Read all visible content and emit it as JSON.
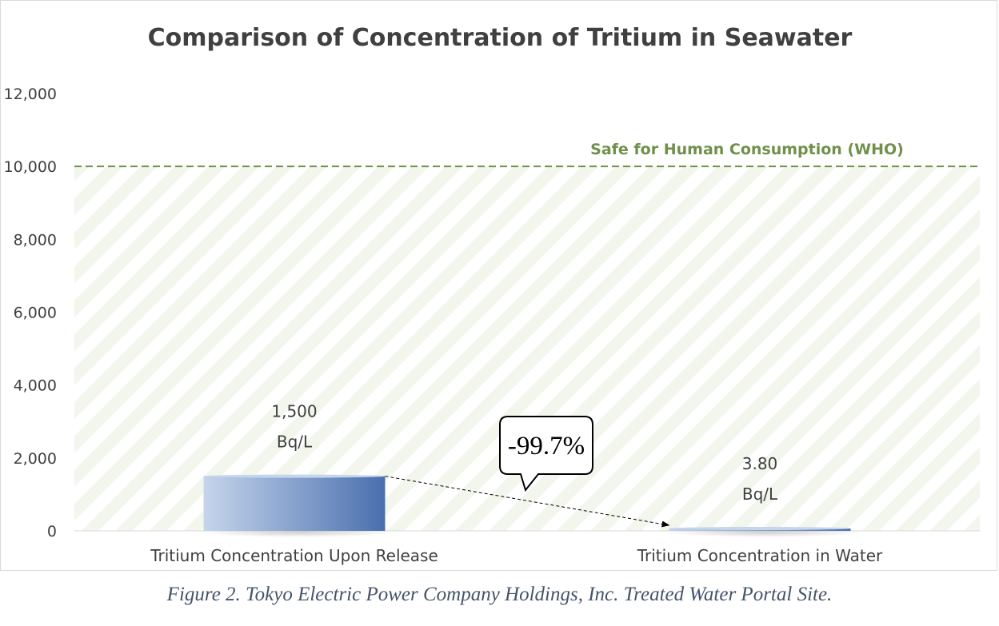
{
  "chart_data": {
    "type": "bar",
    "title": "Comparison of Concentration of Tritium in Seawater",
    "categories": [
      "Tritium Concentration Upon Release",
      "Tritium Concentration in Water"
    ],
    "values": [
      1500,
      3.8
    ],
    "data_labels": [
      {
        "value": "1,500",
        "unit": "Bq/L"
      },
      {
        "value": "3.80",
        "unit": "Bq/L"
      }
    ],
    "ylim": [
      0,
      12000
    ],
    "yticks": [
      0,
      2000,
      4000,
      6000,
      8000,
      10000,
      12000
    ],
    "ytick_labels": [
      "0",
      "2,000",
      "4,000",
      "6,000",
      "8,000",
      "10,000",
      "12,000"
    ],
    "grid": false,
    "reference_line": {
      "value": 10000,
      "label": "Safe for Human Consumption (WHO)",
      "style": "dashed",
      "color": "#70904a"
    },
    "safe_zone_hatched": true,
    "callout": {
      "text": "-99.7%"
    },
    "bar_colors": [
      "#c5d5ec",
      "#4a6fae"
    ]
  },
  "caption": "Figure 2. Tokyo Electric Power Company Holdings, Inc. Treated Water Portal Site."
}
